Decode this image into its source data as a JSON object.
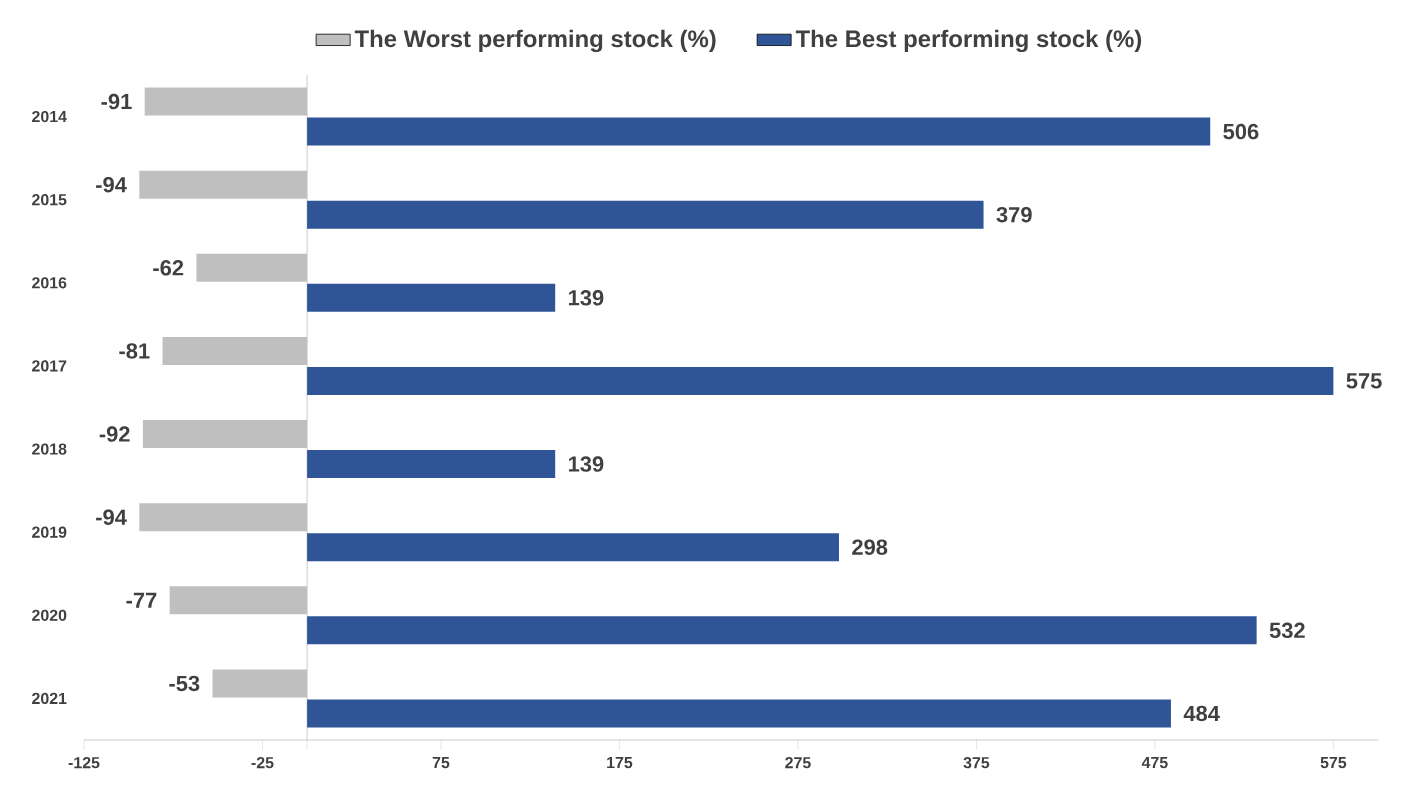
{
  "chart_data": {
    "type": "bar",
    "orientation": "horizontal",
    "categories": [
      "2014",
      "2015",
      "2016",
      "2017",
      "2018",
      "2019",
      "2020",
      "2021"
    ],
    "series": [
      {
        "name": "The Worst performing stock (%)",
        "color": "#bfbfbf",
        "values": [
          -91,
          -94,
          -62,
          -81,
          -92,
          -94,
          -77,
          -53
        ]
      },
      {
        "name": "The Best performing stock (%)",
        "color": "#2f5597",
        "values": [
          506,
          379,
          139,
          575,
          139,
          298,
          532,
          484
        ]
      }
    ],
    "xlim": [
      -125,
      600
    ],
    "xticks": [
      -125,
      -25,
      75,
      175,
      275,
      375,
      475,
      575
    ],
    "data_labels": true,
    "legend": "top"
  }
}
